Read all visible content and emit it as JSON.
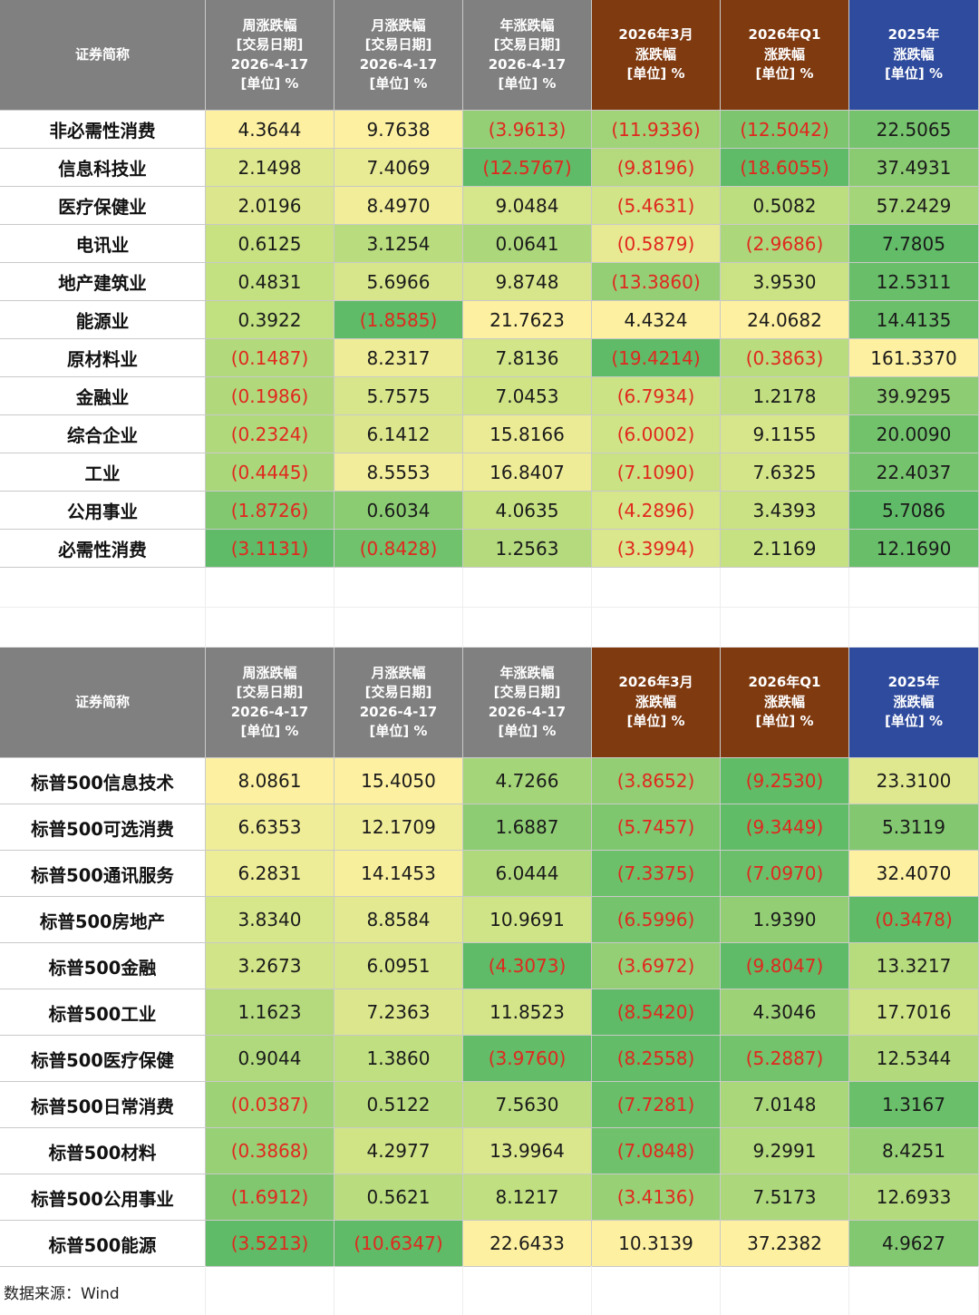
{
  "colors": {
    "header_grey": "#808080",
    "header_brown": "#7f3a10",
    "header_blue": "#2f4b9d",
    "negative_text": "#e0281e",
    "heat_green": "#5fbb67",
    "heat_yellow": "#fdf0a0"
  },
  "headers": [
    [
      "证券简称"
    ],
    [
      "周涨跌幅",
      "[交易日期]",
      "2026-4-17",
      "[单位] %"
    ],
    [
      "月涨跌幅",
      "[交易日期]",
      "2026-4-17",
      "[单位] %"
    ],
    [
      "年涨跌幅",
      "[交易日期]",
      "2026-4-17",
      "[单位] %"
    ],
    [
      "2026年3月",
      "涨跌幅",
      "[单位] %"
    ],
    [
      "2026年Q1",
      "涨跌幅",
      "[单位] %"
    ],
    [
      "2025年",
      "涨跌幅",
      "[单位] %"
    ]
  ],
  "table1": {
    "rows": [
      {
        "name": "非必需性消费",
        "values": [
          "4.3644",
          "9.7638",
          "(3.9613)",
          "(11.9336)",
          "(12.5042)",
          "22.5065"
        ]
      },
      {
        "name": "信息科技业",
        "values": [
          "2.1498",
          "7.4069",
          "(12.5767)",
          "(9.8196)",
          "(18.6055)",
          "37.4931"
        ]
      },
      {
        "name": "医疗保健业",
        "values": [
          "2.0196",
          "8.4970",
          "9.0484",
          "(5.4631)",
          "0.5082",
          "57.2429"
        ]
      },
      {
        "name": "电讯业",
        "values": [
          "0.6125",
          "3.1254",
          "0.0641",
          "(0.5879)",
          "(2.9686)",
          "7.7805"
        ]
      },
      {
        "name": "地产建筑业",
        "values": [
          "0.4831",
          "5.6966",
          "9.8748",
          "(13.3860)",
          "3.9530",
          "12.5311"
        ]
      },
      {
        "name": "能源业",
        "values": [
          "0.3922",
          "(1.8585)",
          "21.7623",
          "4.4324",
          "24.0682",
          "14.4135"
        ]
      },
      {
        "name": "原材料业",
        "values": [
          "(0.1487)",
          "8.2317",
          "7.8136",
          "(19.4214)",
          "(0.3863)",
          "161.3370"
        ]
      },
      {
        "name": "金融业",
        "values": [
          "(0.1986)",
          "5.7575",
          "7.0453",
          "(6.7934)",
          "1.2178",
          "39.9295"
        ]
      },
      {
        "name": "综合企业",
        "values": [
          "(0.2324)",
          "6.1412",
          "15.8166",
          "(6.0002)",
          "9.1155",
          "20.0090"
        ]
      },
      {
        "name": "工业",
        "values": [
          "(0.4445)",
          "8.5553",
          "16.8407",
          "(7.1090)",
          "7.6325",
          "22.4037"
        ]
      },
      {
        "name": "公用事业",
        "values": [
          "(1.8726)",
          "0.6034",
          "4.0635",
          "(4.2896)",
          "3.4393",
          "5.7086"
        ]
      },
      {
        "name": "必需性消费",
        "values": [
          "(3.1131)",
          "(0.8428)",
          "1.2563",
          "(3.3994)",
          "2.1169",
          "12.1690"
        ]
      }
    ]
  },
  "table2": {
    "rows": [
      {
        "name": "标普500信息技术",
        "values": [
          "8.0861",
          "15.4050",
          "4.7266",
          "(3.8652)",
          "(9.2530)",
          "23.3100"
        ]
      },
      {
        "name": "标普500可选消费",
        "values": [
          "6.6353",
          "12.1709",
          "1.6887",
          "(5.7457)",
          "(9.3449)",
          "5.3119"
        ]
      },
      {
        "name": "标普500通讯服务",
        "values": [
          "6.2831",
          "14.1453",
          "6.0444",
          "(7.3375)",
          "(7.0970)",
          "32.4070"
        ]
      },
      {
        "name": "标普500房地产",
        "values": [
          "3.8340",
          "8.8584",
          "10.9691",
          "(6.5996)",
          "1.9390",
          "(0.3478)"
        ]
      },
      {
        "name": "标普500金融",
        "values": [
          "3.2673",
          "6.0951",
          "(4.3073)",
          "(3.6972)",
          "(9.8047)",
          "13.3217"
        ]
      },
      {
        "name": "标普500工业",
        "values": [
          "1.1623",
          "7.2363",
          "11.8523",
          "(8.5420)",
          "4.3046",
          "17.7016"
        ]
      },
      {
        "name": "标普500医疗保健",
        "values": [
          "0.9044",
          "1.3860",
          "(3.9760)",
          "(8.2558)",
          "(5.2887)",
          "12.5344"
        ]
      },
      {
        "name": "标普500日常消费",
        "values": [
          "(0.0387)",
          "0.5122",
          "7.5630",
          "(7.7281)",
          "7.0148",
          "1.3167"
        ]
      },
      {
        "name": "标普500材料",
        "values": [
          "(0.3868)",
          "4.2977",
          "13.9964",
          "(7.0848)",
          "9.2991",
          "8.4251"
        ]
      },
      {
        "name": "标普500公用事业",
        "values": [
          "(1.6912)",
          "0.5621",
          "8.1217",
          "(3.4136)",
          "7.5173",
          "12.6933"
        ]
      },
      {
        "name": "标普500能源",
        "values": [
          "(3.5213)",
          "(10.6347)",
          "22.6433",
          "10.3139",
          "37.2382",
          "4.9627"
        ]
      }
    ]
  },
  "footer": {
    "source": "数据来源：Wind"
  }
}
